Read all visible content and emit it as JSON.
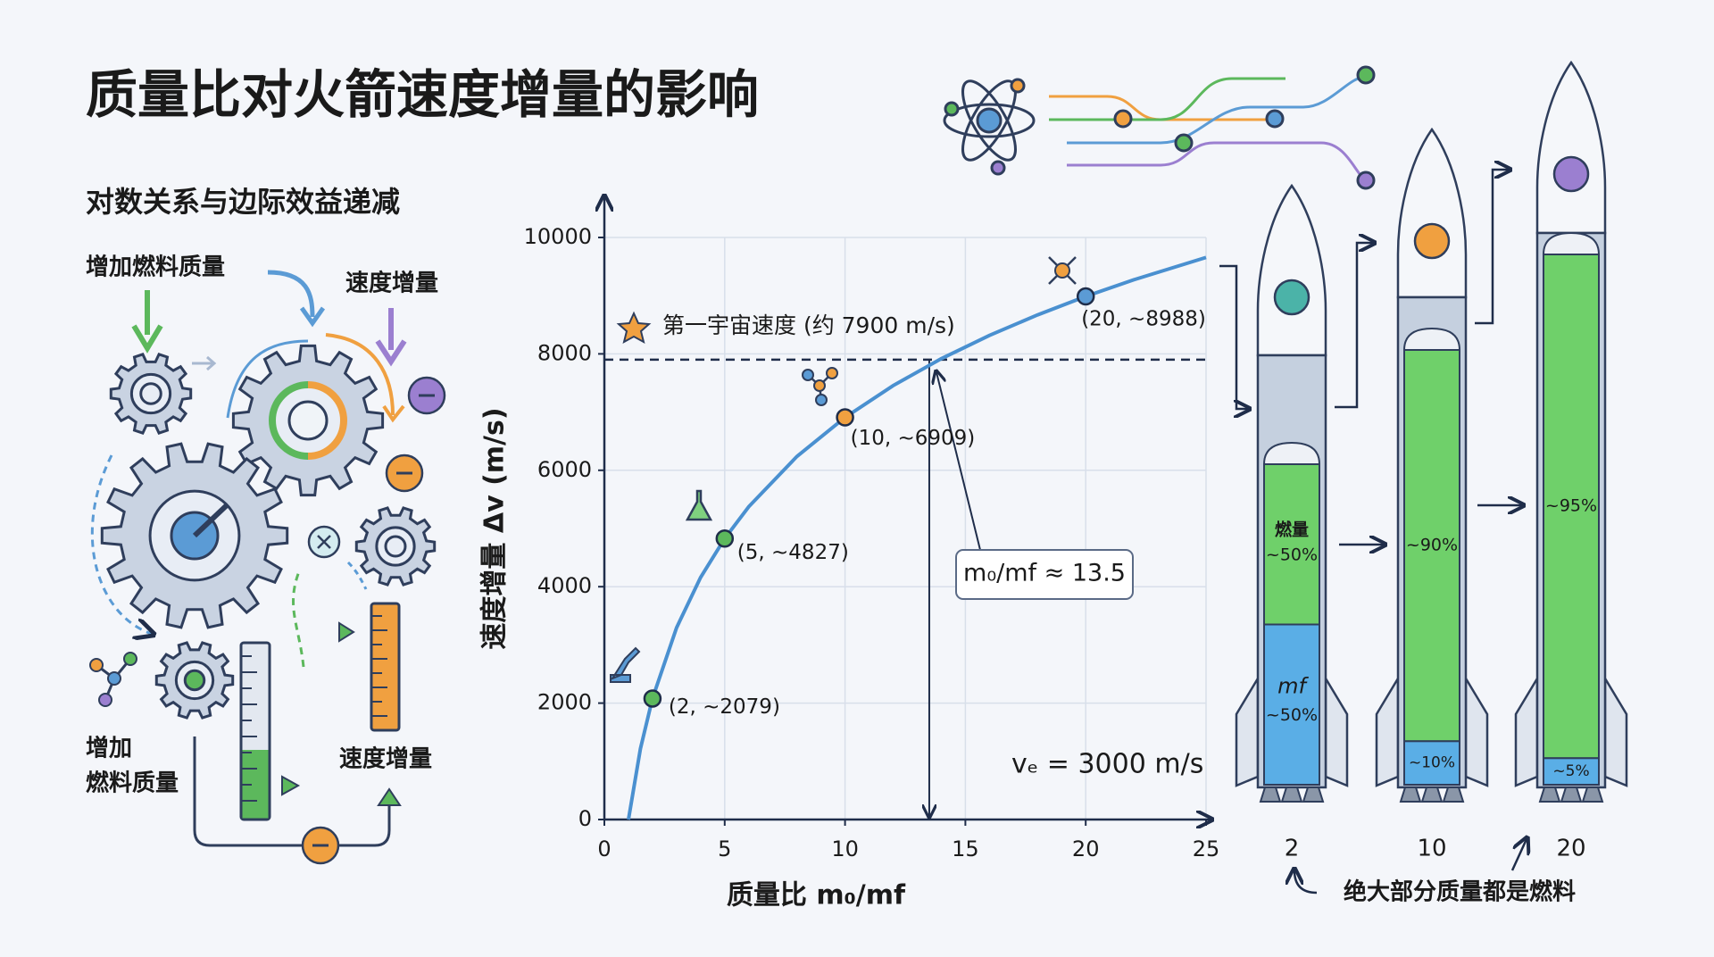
{
  "header": {
    "title": "质量比对火箭速度增量的影响",
    "subtitle": "对数关系与边际效益递减"
  },
  "diagram": {
    "labels": [
      "增加燃料质量",
      "速度增量",
      "增加",
      "燃料质量",
      "速度增量"
    ]
  },
  "chart_data": {
    "type": "line",
    "x_label": "质量比 m₀/mf",
    "y_label": "速度增量 Δv (m/s)",
    "xlim": [
      0,
      25
    ],
    "xticks": [
      0,
      5,
      10,
      15,
      20,
      25
    ],
    "ylim": [
      0,
      10000
    ],
    "yticks": [
      0,
      2000,
      4000,
      6000,
      8000,
      10000
    ],
    "grid": true,
    "series": [
      {
        "color": "#4a90d0",
        "x": [
          1,
          1.5,
          2,
          3,
          4,
          5,
          6,
          8,
          10,
          12,
          14,
          16,
          18,
          20,
          22,
          25
        ],
        "values": [
          0,
          1216,
          2079,
          3296,
          4159,
          4828,
          5375,
          6238,
          6908,
          7455,
          7917,
          8318,
          8671,
          8987,
          9273,
          9657
        ]
      },
      {
        "type": "scatter",
        "x": [
          2,
          5,
          10,
          20
        ],
        "values": [
          2079,
          4827,
          6909,
          8988
        ],
        "value_labels": [
          "(2, ~2079)",
          "(5, ~4827)",
          "(10, ~6909)",
          "(20, ~8988)"
        ],
        "colors": [
          "#5cb85c",
          "#5cb85c",
          "#f0a040",
          "#5b9bd5"
        ]
      }
    ],
    "reference_lines": [
      {
        "axis": "y",
        "value": 7900,
        "label": "第一宇宙速度 (约 7900 m/s)"
      },
      {
        "axis": "x",
        "value": 13.5,
        "label": "m₀/mf ≈ 13.5"
      }
    ],
    "note": "vₑ = 3000 m/s"
  },
  "rockets": {
    "items": [
      {
        "ratio": 2,
        "fuel_label": "燃量",
        "fuel": 50,
        "fuel_value_label": "~50%",
        "dry_label": "mf",
        "dry": 50,
        "dry_value_label": "~50%"
      },
      {
        "ratio": 10,
        "fuel": 90,
        "fuel_value_label": "~90%",
        "dry": 10,
        "dry_value_label": "~10%"
      },
      {
        "ratio": 20,
        "fuel": 95,
        "fuel_value_label": "~95%",
        "dry": 5,
        "dry_value_label": "~5%"
      }
    ],
    "note": "绝大部分质量都是燃料"
  }
}
